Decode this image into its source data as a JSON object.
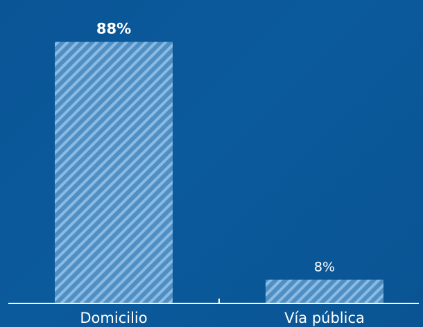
{
  "chart_data": {
    "type": "bar",
    "categories": [
      "Domicilio",
      "Vía pública"
    ],
    "values": [
      88,
      8
    ],
    "value_labels": [
      "88%",
      "8%"
    ],
    "highlight_index": 0,
    "ylim": [
      0,
      100
    ],
    "grid": false,
    "colors": {
      "background": "#0a5596",
      "bar_fill": "#4f8fc4",
      "bar_stripe": "#8bbbe3",
      "axis": "#ffffff",
      "text": "#ffffff"
    }
  }
}
